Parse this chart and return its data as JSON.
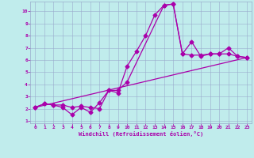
{
  "xlabel": "Windchill (Refroidissement éolien,°C)",
  "xlim": [
    -0.5,
    23.5
  ],
  "ylim": [
    0.8,
    10.8
  ],
  "xticks": [
    0,
    1,
    2,
    3,
    4,
    5,
    6,
    7,
    8,
    9,
    10,
    11,
    12,
    13,
    14,
    15,
    16,
    17,
    18,
    19,
    20,
    21,
    22,
    23
  ],
  "yticks": [
    1,
    2,
    3,
    4,
    5,
    6,
    7,
    8,
    9,
    10
  ],
  "bg_color": "#c0ecec",
  "line_color": "#aa00aa",
  "grid_color": "#99aacc",
  "line1_x": [
    0,
    1,
    2,
    3,
    4,
    5,
    6,
    7,
    8,
    9,
    10,
    11,
    12,
    13,
    14,
    15,
    16,
    17,
    18,
    19,
    20,
    21,
    22,
    23
  ],
  "line1_y": [
    2.1,
    2.4,
    2.3,
    2.1,
    1.5,
    2.1,
    1.7,
    2.5,
    3.5,
    3.3,
    5.5,
    6.7,
    8.0,
    9.7,
    10.5,
    10.6,
    6.5,
    7.5,
    6.3,
    6.5,
    6.5,
    7.0,
    6.3,
    6.2
  ],
  "line2_x": [
    0,
    1,
    2,
    3,
    4,
    5,
    6,
    7,
    8,
    9,
    10,
    14,
    15,
    16,
    17,
    18,
    19,
    20,
    21,
    22,
    23
  ],
  "line2_y": [
    2.1,
    2.4,
    2.3,
    2.3,
    2.1,
    2.2,
    2.1,
    2.0,
    3.5,
    3.5,
    4.2,
    10.5,
    10.6,
    6.5,
    6.4,
    6.4,
    6.5,
    6.5,
    6.5,
    6.3,
    6.2
  ],
  "line3_x": [
    0,
    23
  ],
  "line3_y": [
    2.1,
    6.2
  ],
  "markersize": 2.5,
  "linewidth": 0.9
}
